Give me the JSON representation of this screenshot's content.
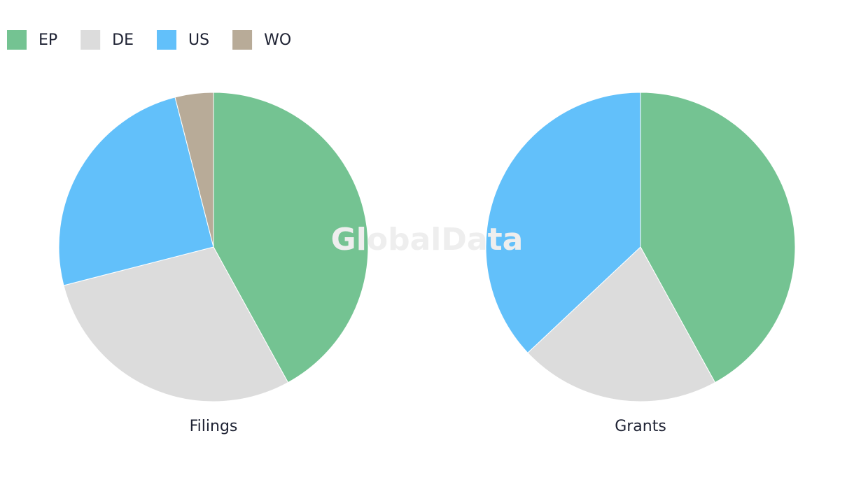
{
  "watermark": "GlobalData",
  "chart_data": [
    {
      "type": "pie",
      "title": "Filings",
      "categories": [
        "EP",
        "DE",
        "US",
        "WO"
      ],
      "values": [
        42,
        29,
        25,
        4
      ],
      "colors": [
        "#74c392",
        "#dcdcdc",
        "#62c0fa",
        "#b8ab98"
      ]
    },
    {
      "type": "pie",
      "title": "Grants",
      "categories": [
        "EP",
        "DE",
        "US"
      ],
      "values": [
        42,
        21,
        37
      ],
      "colors": [
        "#74c392",
        "#dcdcdc",
        "#62c0fa"
      ]
    }
  ]
}
